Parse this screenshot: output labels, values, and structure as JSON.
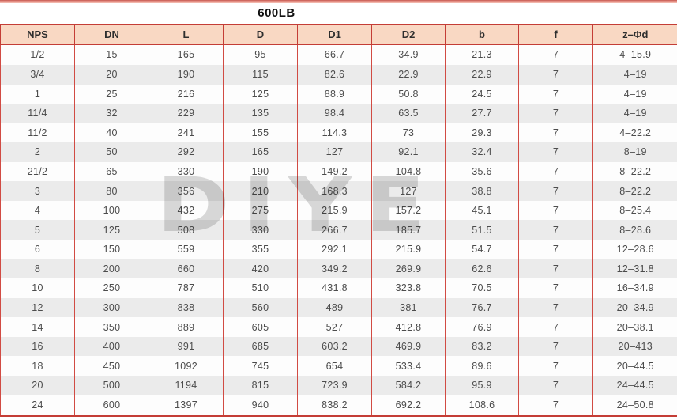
{
  "page": {
    "title": "600LB",
    "watermark": "DIYE"
  },
  "colors": {
    "header_bg": "#f9d8c3",
    "border_red": "#c43d36",
    "row_alt_gray": "#ebebeb",
    "top_strip_pink": "#e9988e",
    "text": "#4c4c4c"
  },
  "table": {
    "columns": [
      "NPS",
      "DN",
      "L",
      "D",
      "D1",
      "D2",
      "b",
      "f",
      "z–Φd"
    ],
    "rows": [
      [
        "1/2",
        "15",
        "165",
        "95",
        "66.7",
        "34.9",
        "21.3",
        "7",
        "4–15.9"
      ],
      [
        "3/4",
        "20",
        "190",
        "115",
        "82.6",
        "22.9",
        "22.9",
        "7",
        "4–19"
      ],
      [
        "1",
        "25",
        "216",
        "125",
        "88.9",
        "50.8",
        "24.5",
        "7",
        "4–19"
      ],
      [
        "11/4",
        "32",
        "229",
        "135",
        "98.4",
        "63.5",
        "27.7",
        "7",
        "4–19"
      ],
      [
        "11/2",
        "40",
        "241",
        "155",
        "114.3",
        "73",
        "29.3",
        "7",
        "4–22.2"
      ],
      [
        "2",
        "50",
        "292",
        "165",
        "127",
        "92.1",
        "32.4",
        "7",
        "8–19"
      ],
      [
        "21/2",
        "65",
        "330",
        "190",
        "149.2",
        "104.8",
        "35.6",
        "7",
        "8–22.2"
      ],
      [
        "3",
        "80",
        "356",
        "210",
        "168.3",
        "127",
        "38.8",
        "7",
        "8–22.2"
      ],
      [
        "4",
        "100",
        "432",
        "275",
        "215.9",
        "157.2",
        "45.1",
        "7",
        "8–25.4"
      ],
      [
        "5",
        "125",
        "508",
        "330",
        "266.7",
        "185.7",
        "51.5",
        "7",
        "8–28.6"
      ],
      [
        "6",
        "150",
        "559",
        "355",
        "292.1",
        "215.9",
        "54.7",
        "7",
        "12–28.6"
      ],
      [
        "8",
        "200",
        "660",
        "420",
        "349.2",
        "269.9",
        "62.6",
        "7",
        "12–31.8"
      ],
      [
        "10",
        "250",
        "787",
        "510",
        "431.8",
        "323.8",
        "70.5",
        "7",
        "16–34.9"
      ],
      [
        "12",
        "300",
        "838",
        "560",
        "489",
        "381",
        "76.7",
        "7",
        "20–34.9"
      ],
      [
        "14",
        "350",
        "889",
        "605",
        "527",
        "412.8",
        "76.9",
        "7",
        "20–38.1"
      ],
      [
        "16",
        "400",
        "991",
        "685",
        "603.2",
        "469.9",
        "83.2",
        "7",
        "20–413"
      ],
      [
        "18",
        "450",
        "1092",
        "745",
        "654",
        "533.4",
        "89.6",
        "7",
        "20–44.5"
      ],
      [
        "20",
        "500",
        "1194",
        "815",
        "723.9",
        "584.2",
        "95.9",
        "7",
        "24–44.5"
      ],
      [
        "24",
        "600",
        "1397",
        "940",
        "838.2",
        "692.2",
        "108.6",
        "7",
        "24–50.8"
      ]
    ]
  }
}
